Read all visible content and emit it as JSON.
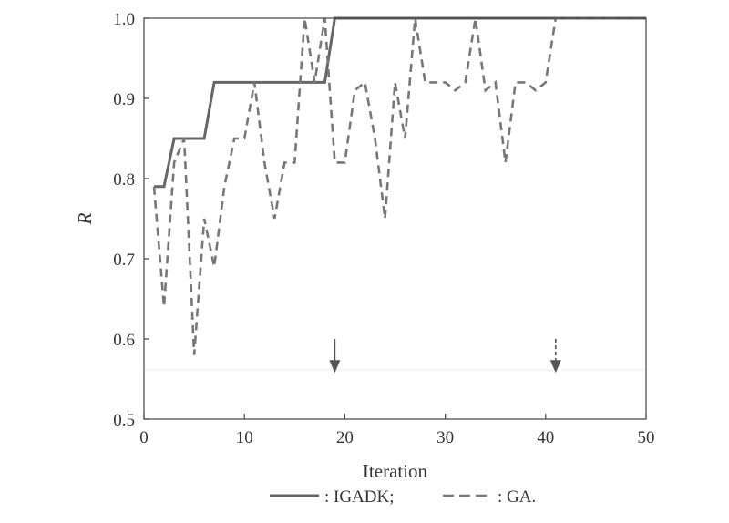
{
  "chart_data": {
    "type": "line",
    "xlabel": "Iteration",
    "ylabel": "R",
    "xlim": [
      0,
      50
    ],
    "ylim": [
      0.5,
      1.0
    ],
    "xticks": [
      "0",
      "10",
      "20",
      "30",
      "40",
      "50"
    ],
    "yticks": [
      "0.5",
      "0.6",
      "0.7",
      "0.8",
      "0.9",
      "1.0"
    ],
    "grid": false,
    "legend_position": "bottom",
    "series": [
      {
        "name": ": IGADK;",
        "style": "solid",
        "color": "#666666",
        "x": [
          1,
          2,
          3,
          4,
          5,
          6,
          7,
          8,
          9,
          10,
          11,
          12,
          13,
          14,
          15,
          16,
          17,
          18,
          19,
          20,
          21,
          22,
          23,
          24,
          25,
          26,
          27,
          28,
          29,
          30,
          31,
          32,
          33,
          34,
          35,
          36,
          37,
          38,
          39,
          40,
          41,
          42,
          43,
          44,
          45,
          46,
          47,
          48,
          49,
          50
        ],
        "y": [
          0.79,
          0.79,
          0.85,
          0.85,
          0.85,
          0.85,
          0.92,
          0.92,
          0.92,
          0.92,
          0.92,
          0.92,
          0.92,
          0.92,
          0.92,
          0.92,
          0.92,
          0.92,
          1.0,
          1.0,
          1.0,
          1.0,
          1.0,
          1.0,
          1.0,
          1.0,
          1.0,
          1.0,
          1.0,
          1.0,
          1.0,
          1.0,
          1.0,
          1.0,
          1.0,
          1.0,
          1.0,
          1.0,
          1.0,
          1.0,
          1.0,
          1.0,
          1.0,
          1.0,
          1.0,
          1.0,
          1.0,
          1.0,
          1.0,
          1.0
        ]
      },
      {
        "name": ": GA.",
        "style": "dashed",
        "color": "#777777",
        "x": [
          1,
          2,
          3,
          4,
          5,
          6,
          7,
          8,
          9,
          10,
          11,
          12,
          13,
          14,
          15,
          16,
          17,
          18,
          19,
          20,
          21,
          22,
          23,
          24,
          25,
          26,
          27,
          28,
          29,
          30,
          31,
          32,
          33,
          34,
          35,
          36,
          37,
          38,
          39,
          40,
          41,
          42,
          43,
          44,
          45,
          46,
          47,
          48,
          49,
          50
        ],
        "y": [
          0.79,
          0.64,
          0.82,
          0.85,
          0.58,
          0.75,
          0.69,
          0.79,
          0.85,
          0.85,
          0.92,
          0.82,
          0.75,
          0.82,
          0.82,
          1.0,
          0.92,
          1.0,
          0.82,
          0.82,
          0.91,
          0.92,
          0.85,
          0.75,
          0.92,
          0.85,
          1.0,
          0.92,
          0.92,
          0.92,
          0.91,
          0.92,
          1.0,
          0.91,
          0.92,
          0.82,
          0.92,
          0.92,
          0.91,
          0.92,
          1.0,
          1.0,
          1.0,
          1.0,
          1.0,
          1.0,
          1.0,
          1.0,
          1.0,
          1.0
        ]
      }
    ],
    "annotations": [
      {
        "type": "arrow",
        "style": "solid",
        "x": 19,
        "y_from": 0.6,
        "y_to": 0.56
      },
      {
        "type": "arrow",
        "style": "dashed",
        "x": 41,
        "y_from": 0.6,
        "y_to": 0.56
      }
    ]
  }
}
